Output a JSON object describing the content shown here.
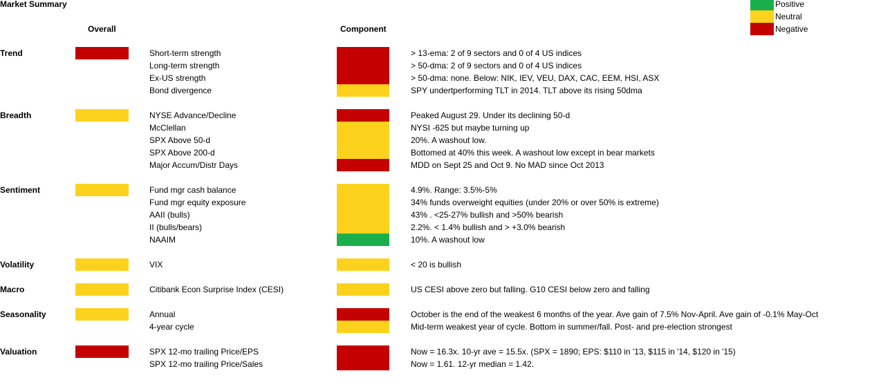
{
  "title": "Market Summary",
  "headers": {
    "overall": "Overall",
    "component": "Component"
  },
  "colors": {
    "positive": "#1aaf4b",
    "neutral": "#fdd21d",
    "negative": "#c50000"
  },
  "legend": [
    {
      "label": "Positive",
      "status": "positive"
    },
    {
      "label": "Neutral",
      "status": "neutral"
    },
    {
      "label": "Negative",
      "status": "negative"
    }
  ],
  "sections": [
    {
      "name": "Trend",
      "overall": "negative",
      "items": [
        {
          "label": "Short-term strength",
          "status": "negative",
          "note": "> 13-ema: 2 of 9 sectors and 0 of 4 US indices"
        },
        {
          "label": "Long-term strength",
          "status": "negative",
          "note": "> 50-dma: 2 of 9 sectors and 0 of 4 US indices"
        },
        {
          "label": "Ex-US strength",
          "status": "negative",
          "note": "> 50-dma: none. Below: NIK, IEV, VEU, DAX, CAC, EEM, HSI, ASX"
        },
        {
          "label": "Bond divergence",
          "status": "neutral",
          "note": "SPY undertperforming TLT in 2014. TLT above its rising 50dma"
        }
      ]
    },
    {
      "name": "Breadth",
      "overall": "neutral",
      "items": [
        {
          "label": "NYSE Advance/Decline",
          "status": "negative",
          "note": "Peaked August 29. Under its declining 50-d"
        },
        {
          "label": "McClellan",
          "status": "neutral",
          "note": "NYSI -625 but maybe turning up"
        },
        {
          "label": "SPX Above 50-d",
          "status": "neutral",
          "note": "20%. A washout low."
        },
        {
          "label": "SPX Above 200-d",
          "status": "neutral",
          "note": "Bottomed at 40% this week. A washout low except in bear markets"
        },
        {
          "label": "Major Accum/Distr Days",
          "status": "negative",
          "note": "MDD on Sept 25 and Oct 9. No MAD since Oct 2013"
        }
      ]
    },
    {
      "name": "Sentiment",
      "overall": "neutral",
      "items": [
        {
          "label": "Fund mgr cash balance",
          "status": "neutral",
          "note": "4.9%. Range: 3.5%-5%"
        },
        {
          "label": "Fund mgr equity exposure",
          "status": "neutral",
          "note": "34% funds overweight equities (under 20% or over 50% is extreme)"
        },
        {
          "label": "AAII (bulls)",
          "status": "neutral",
          "note": "43% . <25-27% bullish and >50% bearish"
        },
        {
          "label": "II (bulls/bears)",
          "status": "neutral",
          "note": "2.2%. < 1.4% bullish and > +3.0% bearish"
        },
        {
          "label": "NAAIM",
          "status": "positive",
          "note": "10%. A washout low"
        }
      ]
    },
    {
      "name": "Volatility",
      "overall": "neutral",
      "items": [
        {
          "label": "VIX",
          "status": "neutral",
          "note": "< 20 is bullish"
        }
      ]
    },
    {
      "name": "Macro",
      "overall": "neutral",
      "items": [
        {
          "label": "Citibank Econ Surprise Index (CESI)",
          "status": "neutral",
          "note": "US CESI above zero but falling.  G10 CESI below zero and falling"
        }
      ]
    },
    {
      "name": "Seasonality",
      "overall": "neutral",
      "items": [
        {
          "label": "Annual",
          "status": "negative",
          "note": "October is the end of the weakest 6 months of the year. Ave gain of 7.5% Nov-April. Ave gain of -0.1% May-Oct"
        },
        {
          "label": "4-year cycle",
          "status": "neutral",
          "note": "Mid-term weakest year of cycle. Bottom in summer/fall. Post- and pre-election strongest"
        }
      ]
    },
    {
      "name": "Valuation",
      "overall": "negative",
      "items": [
        {
          "label": "SPX 12-mo trailing Price/EPS",
          "status": "negative",
          "note": "Now = 16.3x. 10-yr ave = 15.5x.  (SPX = 1890; EPS: $110 in '13, $115 in '14, $120 in '15)"
        },
        {
          "label": "SPX 12-mo trailing Price/Sales",
          "status": "negative",
          "note": "Now = 1.61. 12-yr median = 1.42."
        }
      ]
    }
  ]
}
